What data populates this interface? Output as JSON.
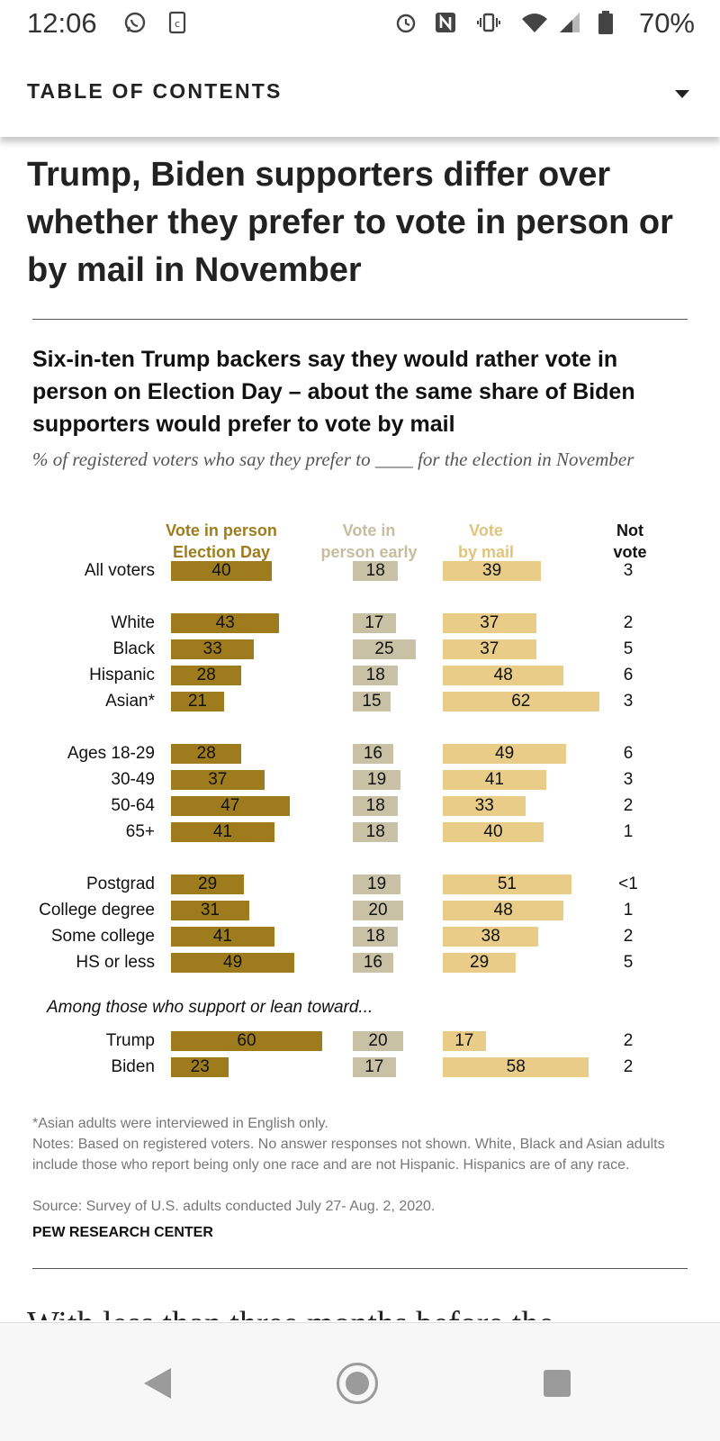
{
  "status_bar": {
    "time": "12:06",
    "battery": "70%",
    "icons": [
      "whatsapp-icon",
      "notification-icon",
      "alarm-icon",
      "nfc-icon",
      "vibrate-icon",
      "wifi-icon",
      "signal-icon",
      "battery-icon"
    ]
  },
  "toc": {
    "label": "TABLE OF CONTENTS",
    "icon": "chevron-down-icon"
  },
  "article": {
    "title": "Trump, Biden supporters differ over whether they prefer to vote in person or by mail in November",
    "next_text": "With less than three months before the"
  },
  "chart_data": {
    "type": "bar",
    "title": "Six-in-ten Trump backers say they would rather vote in person on Election Day – about the same share of Biden supporters would prefer to vote by mail",
    "subtitle": "% of registered voters who say they prefer to ____ for the election in November",
    "series": [
      {
        "name": "Vote in person Election Day",
        "name_lines": [
          "Vote in person",
          "Election Day"
        ],
        "color": "#9e7c1e",
        "header_color": "#9e7c1e"
      },
      {
        "name": "Vote in person early",
        "name_lines": [
          "Vote in",
          "person early"
        ],
        "color": "#c8c1a5",
        "header_color": "#c6bd9f"
      },
      {
        "name": "Vote by mail",
        "name_lines": [
          "Vote",
          "by mail"
        ],
        "color": "#e8cc87",
        "header_color": "#e0c47e"
      },
      {
        "name": "Not vote",
        "name_lines": [
          "Not",
          "vote"
        ],
        "color": "#111111",
        "header_color": "#111111"
      }
    ],
    "group_header": "Among those who support or lean toward...",
    "rows": [
      {
        "label": "All voters",
        "in_person": 40,
        "early": 18,
        "mail": 39,
        "not_vote": "3"
      },
      {
        "label": "White",
        "in_person": 43,
        "early": 17,
        "mail": 37,
        "not_vote": "2"
      },
      {
        "label": "Black",
        "in_person": 33,
        "early": 25,
        "mail": 37,
        "not_vote": "5"
      },
      {
        "label": "Hispanic",
        "in_person": 28,
        "early": 18,
        "mail": 48,
        "not_vote": "6"
      },
      {
        "label": "Asian*",
        "in_person": 21,
        "early": 15,
        "mail": 62,
        "not_vote": "3"
      },
      {
        "label": "Ages 18-29",
        "in_person": 28,
        "early": 16,
        "mail": 49,
        "not_vote": "6"
      },
      {
        "label": "30-49",
        "in_person": 37,
        "early": 19,
        "mail": 41,
        "not_vote": "3"
      },
      {
        "label": "50-64",
        "in_person": 47,
        "early": 18,
        "mail": 33,
        "not_vote": "2"
      },
      {
        "label": "65+",
        "in_person": 41,
        "early": 18,
        "mail": 40,
        "not_vote": "1"
      },
      {
        "label": "Postgrad",
        "in_person": 29,
        "early": 19,
        "mail": 51,
        "not_vote": "<1"
      },
      {
        "label": "College degree",
        "in_person": 31,
        "early": 20,
        "mail": 48,
        "not_vote": "1"
      },
      {
        "label": "Some college",
        "in_person": 41,
        "early": 18,
        "mail": 38,
        "not_vote": "2"
      },
      {
        "label": "HS or less",
        "in_person": 49,
        "early": 16,
        "mail": 29,
        "not_vote": "5"
      },
      {
        "label": "Trump",
        "in_person": 60,
        "early": 20,
        "mail": 17,
        "not_vote": "2"
      },
      {
        "label": "Biden",
        "in_person": 23,
        "early": 17,
        "mail": 58,
        "not_vote": "2"
      }
    ],
    "grid": false
  },
  "notes": {
    "asterisk": "*Asian adults were interviewed in English only.",
    "notes": "Notes: Based on registered voters. No answer responses not shown. White, Black and Asian adults include those who report being only one race and are not Hispanic. Hispanics are of any race.",
    "source": "Source: Survey of U.S. adults conducted July 27- Aug. 2, 2020.",
    "org": "PEW RESEARCH CENTER"
  },
  "nav_bar": {
    "icons": [
      "back-icon",
      "home-icon",
      "recents-icon"
    ]
  }
}
